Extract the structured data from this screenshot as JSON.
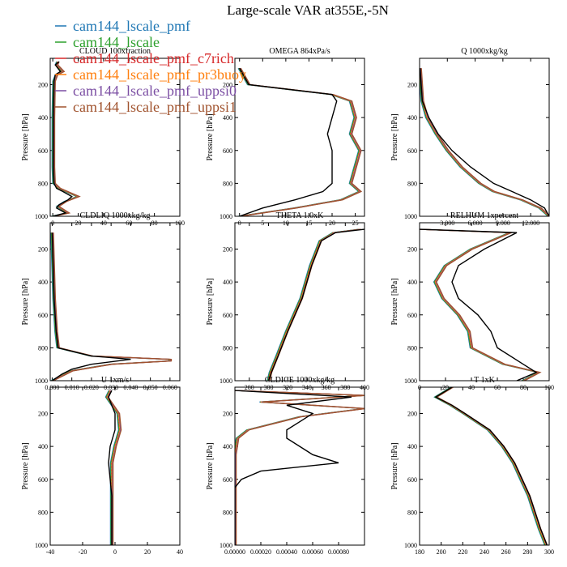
{
  "figure": {
    "title": "Large-scale VAR at355E,-5N",
    "ylabel": "Pressure [hPa]",
    "legend": [
      {
        "name": "cam144_lscale_pmf",
        "color": "#1f77b4"
      },
      {
        "name": "cam144_lscale",
        "color": "#2ca02c"
      },
      {
        "name": "cam144_lscale_pmf_c7rich",
        "color": "#d62728"
      },
      {
        "name": "cam144_lscale_pmf_pr3buoy",
        "color": "#ff7f0e"
      },
      {
        "name": "cam144_lscale_pmf_uppsi0",
        "color": "#7b4ea3"
      },
      {
        "name": "cam144_lscale_pmf_uppsi1",
        "color": "#a0522d"
      }
    ],
    "obs_color": "#000000",
    "legend_placement": "top-left"
  },
  "chart_data": [
    {
      "type": "line",
      "title": "CLOUD  100xfraction",
      "xlim": [
        -2,
        100
      ],
      "ylim": [
        1000,
        40
      ],
      "xticks": [
        {
          "v": 0,
          "t": "0"
        },
        {
          "v": 20,
          "t": "20"
        },
        {
          "v": 40,
          "t": "40"
        },
        {
          "v": 60,
          "t": "60"
        },
        {
          "v": 80,
          "t": "80"
        },
        {
          "v": 100,
          "t": "100"
        }
      ],
      "yticks": [
        200,
        400,
        600,
        800,
        1000
      ],
      "obs": [
        [
          5,
          60
        ],
        [
          2,
          80
        ],
        [
          6,
          120
        ],
        [
          2,
          140
        ],
        [
          1,
          180
        ],
        [
          0.5,
          400
        ],
        [
          0.5,
          700
        ],
        [
          1,
          800
        ],
        [
          3,
          830
        ],
        [
          8,
          850
        ],
        [
          15,
          880
        ],
        [
          12,
          900
        ],
        [
          5,
          930
        ],
        [
          3,
          950
        ],
        [
          10,
          980
        ],
        [
          0,
          1000
        ]
      ],
      "model": [
        [
          4,
          60
        ],
        [
          3,
          80
        ],
        [
          8,
          120
        ],
        [
          3,
          140
        ],
        [
          1,
          180
        ],
        [
          0.5,
          400
        ],
        [
          0.5,
          700
        ],
        [
          1,
          800
        ],
        [
          5,
          830
        ],
        [
          14,
          860
        ],
        [
          20,
          880
        ],
        [
          10,
          910
        ],
        [
          4,
          940
        ],
        [
          9,
          965
        ],
        [
          12,
          980
        ],
        [
          0,
          1000
        ]
      ]
    },
    {
      "type": "line",
      "title": "OMEGA  864xPa/s",
      "xlim": [
        -1,
        27
      ],
      "ylim": [
        1000,
        40
      ],
      "xticks": [
        {
          "v": 0,
          "t": "0"
        },
        {
          "v": 5,
          "t": "5"
        },
        {
          "v": 10,
          "t": "10"
        },
        {
          "v": 15,
          "t": "15"
        },
        {
          "v": 20,
          "t": "20"
        },
        {
          "v": 25,
          "t": "25"
        }
      ],
      "yticks": [
        200,
        400,
        600,
        800,
        1000
      ],
      "obs": [
        [
          0,
          100
        ],
        [
          2,
          200
        ],
        [
          20,
          260
        ],
        [
          21,
          300
        ],
        [
          20,
          400
        ],
        [
          19,
          500
        ],
        [
          20,
          600
        ],
        [
          20,
          700
        ],
        [
          20,
          800
        ],
        [
          18,
          850
        ],
        [
          12,
          900
        ],
        [
          5,
          950
        ],
        [
          0,
          1000
        ]
      ],
      "model": [
        [
          0,
          100
        ],
        [
          2,
          200
        ],
        [
          20,
          260
        ],
        [
          24,
          300
        ],
        [
          25,
          400
        ],
        [
          24,
          500
        ],
        [
          26,
          600
        ],
        [
          25,
          700
        ],
        [
          24,
          800
        ],
        [
          26,
          850
        ],
        [
          22,
          900
        ],
        [
          12,
          950
        ],
        [
          0,
          1000
        ]
      ]
    },
    {
      "type": "line",
      "title": "Q  1000xkg/kg",
      "xlim": [
        0,
        14
      ],
      "ylim": [
        1000,
        40
      ],
      "xticks": [
        {
          "v": 3,
          "t": "3.000"
        },
        {
          "v": 6,
          "t": "6.000"
        },
        {
          "v": 9,
          "t": "9.000"
        },
        {
          "v": 12,
          "t": "12.000"
        }
      ],
      "yticks": [
        200,
        400,
        600,
        800,
        1000
      ],
      "obs": [
        [
          0.05,
          100
        ],
        [
          0.3,
          300
        ],
        [
          1,
          400
        ],
        [
          2,
          500
        ],
        [
          3.5,
          600
        ],
        [
          5.5,
          700
        ],
        [
          8,
          800
        ],
        [
          10,
          850
        ],
        [
          12,
          900
        ],
        [
          13.5,
          950
        ],
        [
          14,
          1000
        ]
      ],
      "model": [
        [
          0.05,
          100
        ],
        [
          0.3,
          300
        ],
        [
          0.8,
          400
        ],
        [
          1.8,
          500
        ],
        [
          3,
          600
        ],
        [
          4.5,
          700
        ],
        [
          6.5,
          800
        ],
        [
          8,
          850
        ],
        [
          11,
          900
        ],
        [
          13,
          950
        ],
        [
          14,
          1000
        ]
      ]
    },
    {
      "type": "line",
      "title": "CLDLIQ  1000xkg/kg",
      "xlim": [
        -0.001,
        0.065
      ],
      "ylim": [
        1000,
        40
      ],
      "xticks": [
        {
          "v": 0,
          "t": "0.000"
        },
        {
          "v": 0.01,
          "t": "0.010"
        },
        {
          "v": 0.02,
          "t": "0.020"
        },
        {
          "v": 0.03,
          "t": "0.030"
        },
        {
          "v": 0.04,
          "t": "0.040"
        },
        {
          "v": 0.05,
          "t": "0.050"
        },
        {
          "v": 0.06,
          "t": "0.060"
        }
      ],
      "yticks": [
        200,
        400,
        600,
        800,
        1000
      ],
      "obs": [
        [
          0,
          100
        ],
        [
          0.001,
          500
        ],
        [
          0.002,
          700
        ],
        [
          0.003,
          800
        ],
        [
          0.02,
          850
        ],
        [
          0.04,
          870
        ],
        [
          0.02,
          900
        ],
        [
          0.01,
          930
        ],
        [
          0.005,
          960
        ],
        [
          0,
          1000
        ]
      ],
      "model": [
        [
          0,
          100
        ],
        [
          0.001,
          500
        ],
        [
          0.002,
          700
        ],
        [
          0.003,
          800
        ],
        [
          0.02,
          850
        ],
        [
          0.06,
          870
        ],
        [
          0.06,
          880
        ],
        [
          0.03,
          900
        ],
        [
          0.01,
          940
        ],
        [
          0,
          1000
        ]
      ]
    },
    {
      "type": "line",
      "title": "THETA  1.0xK",
      "xlim": [
        265,
        400
      ],
      "ylim": [
        1000,
        40
      ],
      "xticks": [
        {
          "v": 280,
          "t": "280"
        },
        {
          "v": 300,
          "t": "300"
        },
        {
          "v": 320,
          "t": "320"
        },
        {
          "v": 340,
          "t": "340"
        },
        {
          "v": 360,
          "t": "360"
        },
        {
          "v": 380,
          "t": "380"
        },
        {
          "v": 400,
          "t": "400"
        }
      ],
      "yticks": [
        200,
        400,
        600,
        800,
        1000
      ],
      "obs": [
        [
          400,
          80
        ],
        [
          370,
          100
        ],
        [
          355,
          150
        ],
        [
          345,
          300
        ],
        [
          335,
          500
        ],
        [
          320,
          700
        ],
        [
          310,
          850
        ],
        [
          303,
          950
        ],
        [
          300,
          1000
        ]
      ],
      "model": [
        [
          395,
          80
        ],
        [
          368,
          100
        ],
        [
          354,
          150
        ],
        [
          344,
          300
        ],
        [
          334,
          500
        ],
        [
          319,
          700
        ],
        [
          309,
          850
        ],
        [
          302,
          950
        ],
        [
          300,
          1000
        ]
      ]
    },
    {
      "type": "line",
      "title": "RELHUM  1xpercent",
      "xlim": [
        0,
        100
      ],
      "ylim": [
        1000,
        40
      ],
      "xticks": [
        {
          "v": 0,
          "t": "0"
        },
        {
          "v": 20,
          "t": "20"
        },
        {
          "v": 40,
          "t": "40"
        },
        {
          "v": 60,
          "t": "60"
        },
        {
          "v": 80,
          "t": "80"
        },
        {
          "v": 100,
          "t": "100"
        }
      ],
      "yticks": [
        200,
        400,
        600,
        800,
        1000
      ],
      "obs": [
        [
          0,
          80
        ],
        [
          75,
          100
        ],
        [
          50,
          200
        ],
        [
          30,
          300
        ],
        [
          25,
          400
        ],
        [
          30,
          500
        ],
        [
          45,
          600
        ],
        [
          55,
          700
        ],
        [
          60,
          800
        ],
        [
          80,
          900
        ],
        [
          90,
          950
        ],
        [
          75,
          1000
        ]
      ],
      "model": [
        [
          0,
          80
        ],
        [
          70,
          100
        ],
        [
          40,
          200
        ],
        [
          20,
          300
        ],
        [
          12,
          400
        ],
        [
          18,
          500
        ],
        [
          30,
          600
        ],
        [
          38,
          700
        ],
        [
          40,
          800
        ],
        [
          65,
          900
        ],
        [
          92,
          950
        ],
        [
          80,
          1000
        ]
      ]
    },
    {
      "type": "line",
      "title": "U  1xm/s",
      "xlim": [
        -40,
        40
      ],
      "ylim": [
        1000,
        40
      ],
      "xticks": [
        {
          "v": -40,
          "t": "-40"
        },
        {
          "v": -20,
          "t": "-20"
        },
        {
          "v": 0,
          "t": "0"
        },
        {
          "v": 20,
          "t": "20"
        },
        {
          "v": 40,
          "t": "40"
        }
      ],
      "yticks": [
        200,
        400,
        600,
        800,
        1000
      ],
      "obs": [
        [
          -2,
          60
        ],
        [
          -4,
          100
        ],
        [
          0,
          200
        ],
        [
          0,
          300
        ],
        [
          -3,
          400
        ],
        [
          -4,
          500
        ],
        [
          -3,
          600
        ],
        [
          -2,
          700
        ],
        [
          -2,
          800
        ],
        [
          -2,
          900
        ],
        [
          -2,
          1000
        ]
      ],
      "model": [
        [
          -3,
          60
        ],
        [
          -5,
          100
        ],
        [
          2,
          200
        ],
        [
          3,
          300
        ],
        [
          0,
          400
        ],
        [
          -2,
          500
        ],
        [
          -2,
          600
        ],
        [
          -2,
          700
        ],
        [
          -2,
          800
        ],
        [
          -2,
          900
        ],
        [
          -2,
          1000
        ]
      ]
    },
    {
      "type": "line",
      "title": "CLDICE  1000xkg/kg",
      "xlim": [
        0,
        0.001
      ],
      "ylim": [
        1000,
        40
      ],
      "xticks": [
        {
          "v": 0,
          "t": "0.00000"
        },
        {
          "v": 0.0002,
          "t": "0.00020"
        },
        {
          "v": 0.0004,
          "t": "0.00040"
        },
        {
          "v": 0.0006,
          "t": "0.00060"
        },
        {
          "v": 0.0008,
          "t": "0.00080"
        }
      ],
      "yticks": [
        200,
        400,
        600,
        800,
        1000
      ],
      "obs": [
        [
          0,
          60
        ],
        [
          0.0009,
          100
        ],
        [
          0.0004,
          150
        ],
        [
          0.0006,
          200
        ],
        [
          0.0005,
          250
        ],
        [
          0.0004,
          300
        ],
        [
          0.0004,
          350
        ],
        [
          0.0006,
          450
        ],
        [
          0.0008,
          500
        ],
        [
          0.0002,
          550
        ],
        [
          5e-05,
          600
        ],
        [
          0,
          650
        ],
        [
          0,
          1000
        ]
      ],
      "model": [
        [
          0,
          60
        ],
        [
          0.001,
          90
        ],
        [
          0.0002,
          130
        ],
        [
          0.001,
          170
        ],
        [
          0.0005,
          220
        ],
        [
          0.0001,
          300
        ],
        [
          2e-05,
          350
        ],
        [
          0,
          450
        ],
        [
          0,
          1000
        ]
      ]
    },
    {
      "type": "line",
      "title": "T  1xK",
      "xlim": [
        180,
        300
      ],
      "ylim": [
        1000,
        40
      ],
      "xticks": [
        {
          "v": 180,
          "t": "180"
        },
        {
          "v": 200,
          "t": "200"
        },
        {
          "v": 220,
          "t": "220"
        },
        {
          "v": 240,
          "t": "240"
        },
        {
          "v": 260,
          "t": "260"
        },
        {
          "v": 280,
          "t": "280"
        },
        {
          "v": 300,
          "t": "300"
        }
      ],
      "yticks": [
        200,
        400,
        600,
        800,
        1000
      ],
      "obs": [
        [
          210,
          40
        ],
        [
          195,
          100
        ],
        [
          210,
          150
        ],
        [
          222,
          200
        ],
        [
          245,
          300
        ],
        [
          258,
          400
        ],
        [
          268,
          500
        ],
        [
          275,
          600
        ],
        [
          282,
          700
        ],
        [
          287,
          800
        ],
        [
          292,
          900
        ],
        [
          298,
          1000
        ]
      ],
      "model": [
        [
          210,
          40
        ],
        [
          195,
          100
        ],
        [
          209,
          150
        ],
        [
          221,
          200
        ],
        [
          244,
          300
        ],
        [
          257,
          400
        ],
        [
          267,
          500
        ],
        [
          274,
          600
        ],
        [
          281,
          700
        ],
        [
          286,
          800
        ],
        [
          291,
          900
        ],
        [
          297,
          1000
        ]
      ]
    }
  ]
}
